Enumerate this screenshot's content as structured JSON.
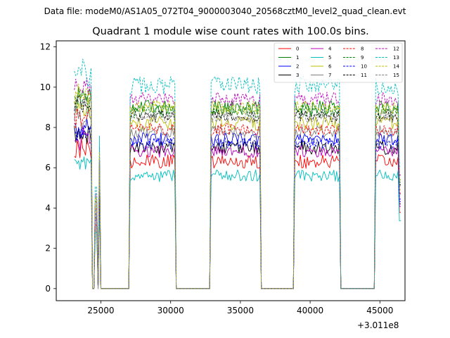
{
  "chart_data": {
    "type": "line",
    "suptitle": "Data file: modeM0/AS1A05_072T04_9000003040_20568cztM0_level2_quad_clean.evt",
    "title": "Quadrant 1 module wise count rates with 100.0s bins.",
    "xlabel": "",
    "ylabel": "",
    "x_offset_label": "+3.011e8",
    "xlim": [
      21800,
      46800
    ],
    "ylim": [
      -0.6,
      12.3
    ],
    "xticks": [
      25000,
      30000,
      35000,
      40000,
      45000
    ],
    "xtick_labels": [
      "25000",
      "30000",
      "35000",
      "40000",
      "45000"
    ],
    "yticks": [
      0,
      2,
      4,
      6,
      8,
      10,
      12
    ],
    "ytick_labels": [
      "0",
      "2",
      "4",
      "6",
      "8",
      "10",
      "12"
    ],
    "legend_position": "top-right",
    "segments": [
      {
        "start": 23100,
        "end": 24300
      },
      {
        "start": 24600,
        "end": 24700
      },
      {
        "start": 24850,
        "end": 24950
      },
      {
        "start": 27100,
        "end": 30300
      },
      {
        "start": 32900,
        "end": 36400
      },
      {
        "start": 38900,
        "end": 42100
      },
      {
        "start": 44700,
        "end": 46500
      }
    ],
    "series": [
      {
        "name": "0",
        "color": "#ff0000",
        "dash": "solid",
        "mean": 6.3,
        "noise": 0.35
      },
      {
        "name": "1",
        "color": "#008000",
        "dash": "solid",
        "mean": 9.0,
        "noise": 0.35
      },
      {
        "name": "2",
        "color": "#0000ff",
        "dash": "solid",
        "mean": 7.4,
        "noise": 0.35
      },
      {
        "name": "3",
        "color": "#000000",
        "dash": "solid",
        "mean": 7.0,
        "noise": 0.35
      },
      {
        "name": "4",
        "color": "#bf00bf",
        "dash": "solid",
        "mean": 6.8,
        "noise": 0.3
      },
      {
        "name": "5",
        "color": "#00bfbf",
        "dash": "solid",
        "mean": 5.6,
        "noise": 0.3
      },
      {
        "name": "6",
        "color": "#bfbf00",
        "dash": "solid",
        "mean": 8.2,
        "noise": 0.35
      },
      {
        "name": "7",
        "color": "#808080",
        "dash": "solid",
        "mean": 7.8,
        "noise": 0.3
      },
      {
        "name": "8",
        "color": "#ff0000",
        "dash": "dashed",
        "mean": 7.9,
        "noise": 0.3
      },
      {
        "name": "9",
        "color": "#008000",
        "dash": "dashed",
        "mean": 8.8,
        "noise": 0.35
      },
      {
        "name": "10",
        "color": "#0000ff",
        "dash": "dashed",
        "mean": 7.2,
        "noise": 0.3
      },
      {
        "name": "11",
        "color": "#000000",
        "dash": "dashed",
        "mean": 8.6,
        "noise": 0.3
      },
      {
        "name": "12",
        "color": "#bf00bf",
        "dash": "dashed",
        "mean": 9.4,
        "noise": 0.35
      },
      {
        "name": "13",
        "color": "#00bfbf",
        "dash": "dashed",
        "mean": 10.1,
        "noise": 0.45
      },
      {
        "name": "14",
        "color": "#bfbf00",
        "dash": "dashed",
        "mean": 9.0,
        "noise": 0.35
      },
      {
        "name": "15",
        "color": "#808080",
        "dash": "dashed",
        "mean": 8.5,
        "noise": 0.3
      }
    ]
  }
}
